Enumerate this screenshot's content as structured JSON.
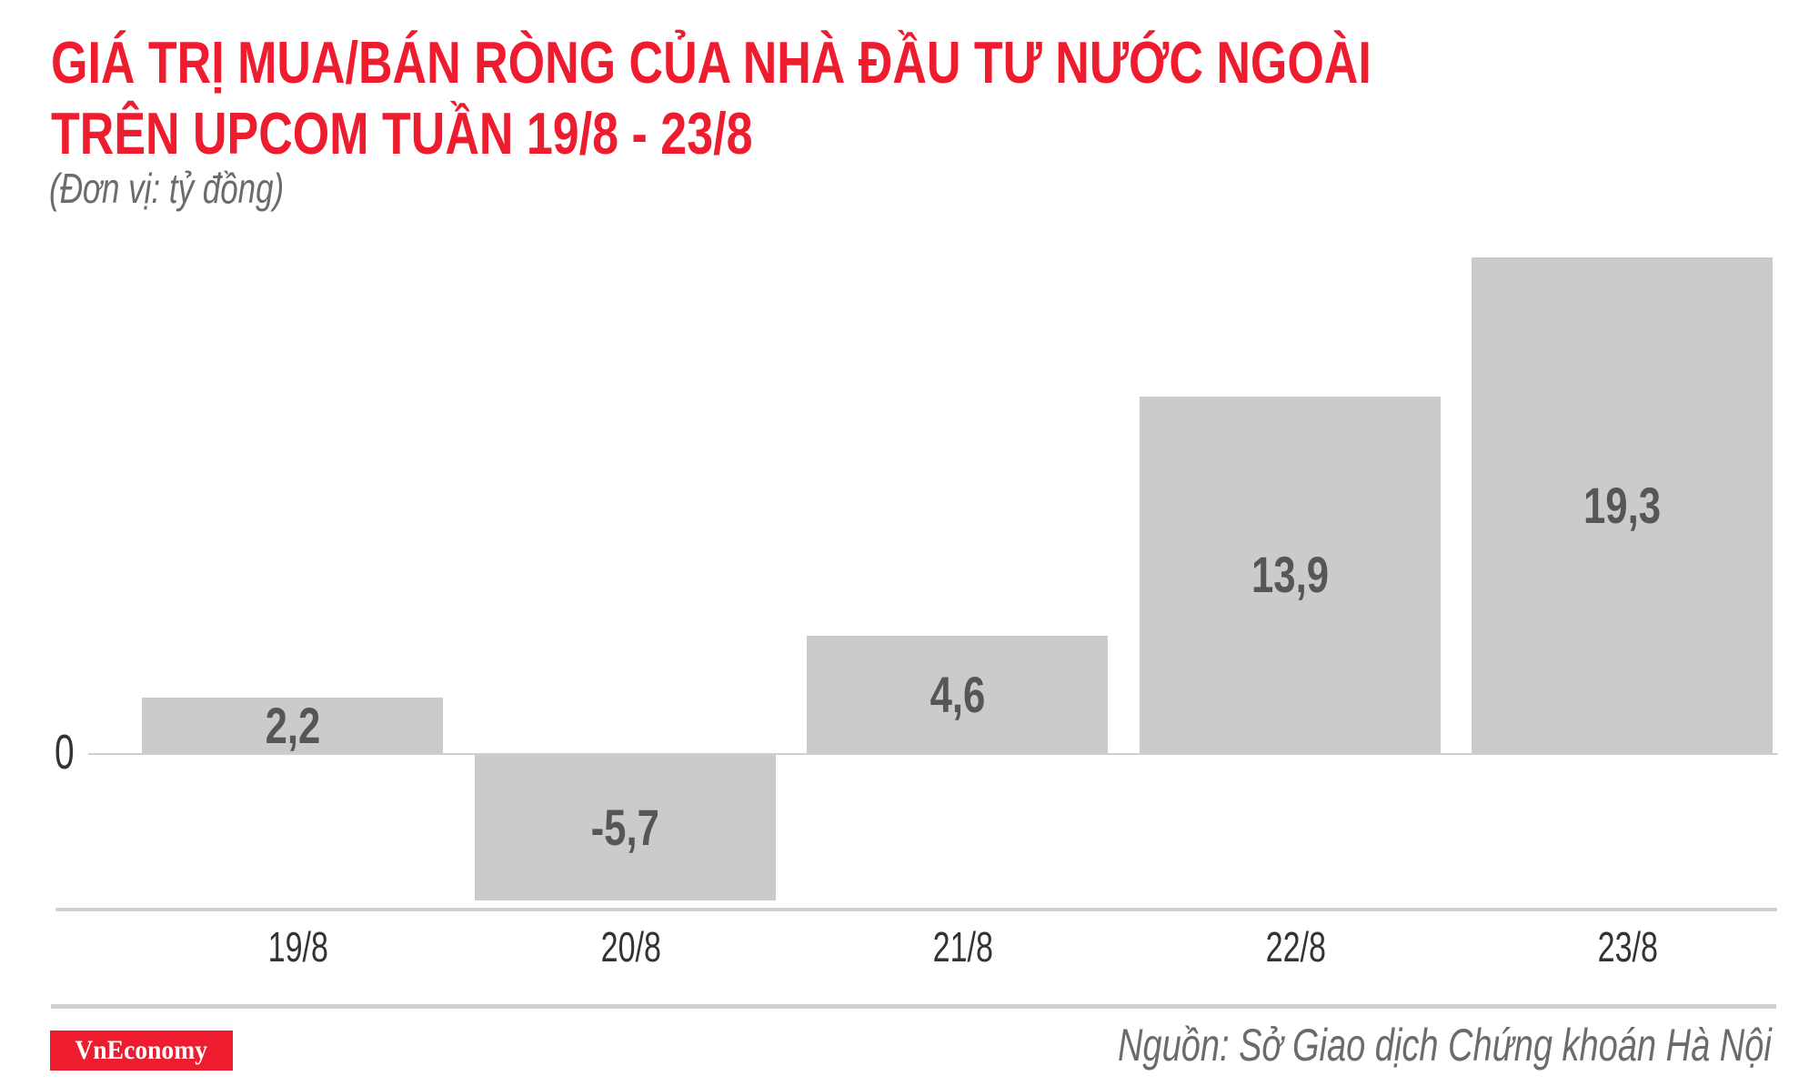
{
  "header": {
    "title_line1": "GIÁ TRỊ MUA/BÁN RÒNG CỦA NHÀ ĐẦU TƯ NƯỚC NGOÀI",
    "title_line2": "TRÊN UPCOM TUẦN 19/8 - 23/8",
    "unit": "(Đơn vị: tỷ đồng)"
  },
  "footer": {
    "logo": "VnEconomy",
    "source": "Nguồn: Sở Giao dịch Chứng khoán Hà Nội"
  },
  "colors": {
    "title": "#ED1C2E",
    "bar": "#CCCBCC",
    "bar_label": "#565656",
    "logo_bg": "#ED1C2E"
  },
  "chart_data": {
    "type": "bar",
    "title": "GIÁ TRỊ MUA/BÁN RÒNG CỦA NHÀ ĐẦU TƯ NƯỚC NGOÀI TRÊN UPCOM TUẦN 19/8 - 23/8",
    "subtitle": "(Đơn vị: tỷ đồng)",
    "xlabel": "",
    "ylabel": "",
    "categories": [
      "19/8",
      "20/8",
      "21/8",
      "22/8",
      "23/8"
    ],
    "values": [
      2.2,
      -5.7,
      4.6,
      13.9,
      19.3
    ],
    "value_labels": [
      "2,2",
      "-5,7",
      "4,6",
      "13,9",
      "19,3"
    ],
    "y_tick_labels": [
      "0"
    ],
    "ylim": [
      -5.7,
      19.3
    ],
    "grid": false,
    "legend": "none",
    "data_labels": "inside bars"
  }
}
